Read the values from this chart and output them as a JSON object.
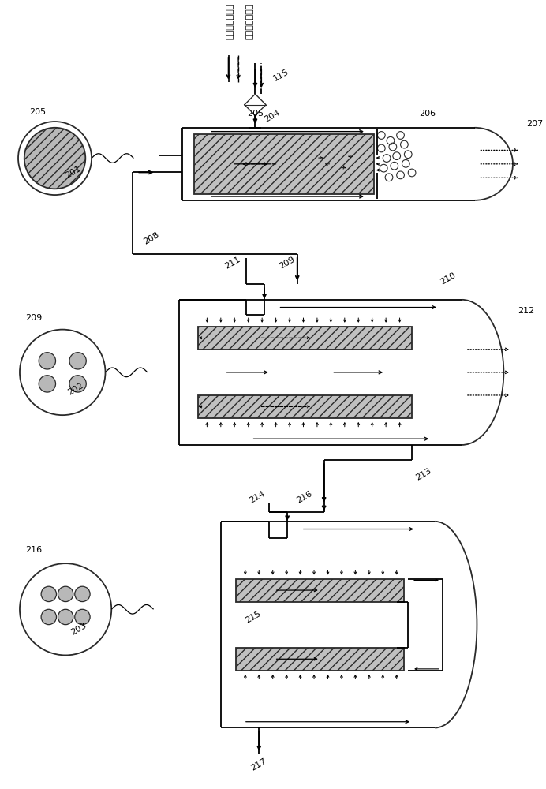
{
  "bg_color": "#ffffff",
  "line_color": "#2a2a2a",
  "legend_solid": "二氧化碳的流动",
  "legend_dash": "液状萃质的流动",
  "labels": {
    "205_circ": "205",
    "201": "201",
    "115": "115",
    "204": "204",
    "205_v": "205",
    "206": "206",
    "207": "207",
    "208": "208",
    "209_circ": "209",
    "202": "202",
    "211": "211",
    "209_v": "209",
    "210": "210",
    "212": "212",
    "213": "213",
    "216_circ": "216",
    "203": "203",
    "214": "214",
    "216_v": "216",
    "215": "215",
    "217": "217"
  }
}
